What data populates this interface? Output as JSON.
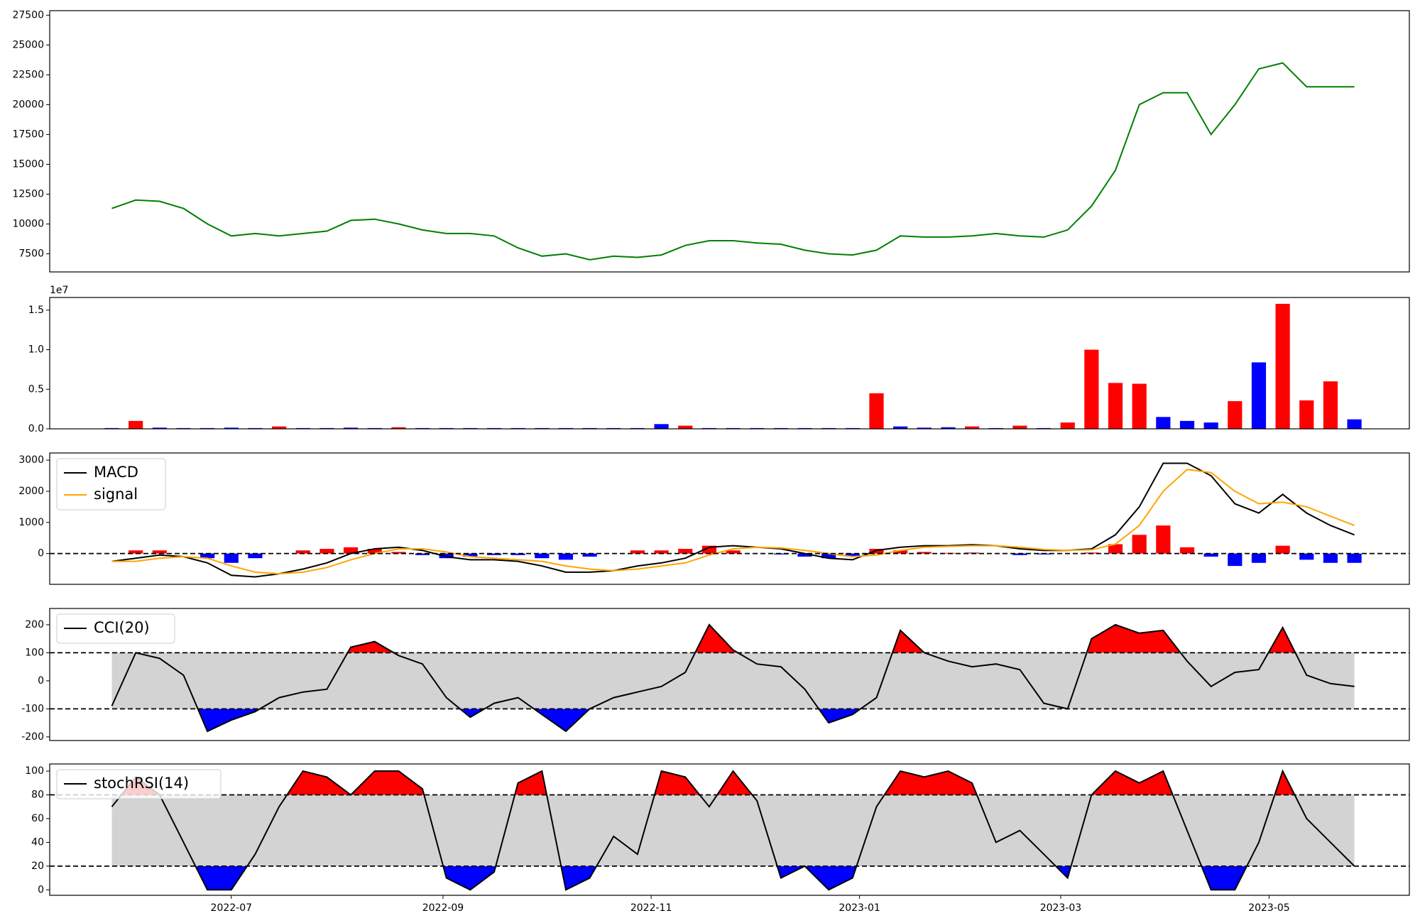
{
  "chart_data": [
    {
      "type": "line",
      "color": "green",
      "xlim": [
        -2.6,
        54.3
      ],
      "ylim": [
        5980,
        27880
      ],
      "yticks": [
        7500,
        10000,
        12500,
        15000,
        17500,
        20000,
        22500,
        25000,
        27500
      ],
      "values": [
        11300,
        12000,
        11900,
        11300,
        10000,
        9000,
        9200,
        9000,
        9200,
        9400,
        10300,
        10400,
        10000,
        9500,
        9200,
        9200,
        9000,
        8000,
        7300,
        7500,
        7000,
        7300,
        7200,
        7400,
        8200,
        8600,
        8600,
        8400,
        8300,
        7800,
        7500,
        7400,
        7800,
        9000,
        8900,
        8900,
        9000,
        9200,
        9000,
        8900,
        9500,
        11500,
        14500,
        20000,
        21000,
        21000,
        17500,
        20000,
        23000,
        23500,
        21500,
        21500,
        21500
      ]
    },
    {
      "type": "bar",
      "offset_label": "1e7",
      "xlim": [
        -2.6,
        54.3
      ],
      "ylim": [
        0,
        16600000
      ],
      "yticks": [
        {
          "value": 0,
          "label": "0.0"
        },
        {
          "value": 5000000,
          "label": "0.5"
        },
        {
          "value": 10000000,
          "label": "1.0"
        },
        {
          "value": 15000000,
          "label": "1.5"
        }
      ],
      "values": [
        100000,
        1000000,
        150000,
        100000,
        100000,
        150000,
        100000,
        300000,
        100000,
        100000,
        150000,
        100000,
        200000,
        100000,
        100000,
        100000,
        100000,
        100000,
        100000,
        100000,
        100000,
        100000,
        100000,
        600000,
        400000,
        100000,
        100000,
        100000,
        100000,
        100000,
        100000,
        100000,
        4500000,
        300000,
        150000,
        200000,
        300000,
        100000,
        400000,
        100000,
        800000,
        10000000,
        5800000,
        5700000,
        1500000,
        1000000,
        800000,
        3500000,
        8400000,
        15800000,
        3600000,
        6000000,
        1200000
      ],
      "colors": [
        "blue",
        "red",
        "blue",
        "blue",
        "blue",
        "blue",
        "blue",
        "red",
        "blue",
        "blue",
        "blue",
        "blue",
        "red",
        "blue",
        "blue",
        "blue",
        "blue",
        "blue",
        "blue",
        "blue",
        "blue",
        "blue",
        "blue",
        "blue",
        "red",
        "blue",
        "blue",
        "blue",
        "blue",
        "blue",
        "blue",
        "blue",
        "red",
        "blue",
        "blue",
        "blue",
        "red",
        "blue",
        "red",
        "blue",
        "red",
        "red",
        "red",
        "red",
        "blue",
        "blue",
        "blue",
        "red",
        "blue",
        "red",
        "red",
        "red",
        "blue"
      ]
    },
    {
      "type": "line",
      "xlim": [
        -2.6,
        54.3
      ],
      "ylim": [
        -990,
        3230
      ],
      "yticks": [
        0,
        1000,
        2000,
        3000
      ],
      "legend": "upper left",
      "hlines": [
        0
      ],
      "hline_color": "black",
      "histogram": {
        "up_color": "red",
        "down_color": "blue",
        "values": [
          0,
          100,
          100,
          0,
          -150,
          -300,
          -150,
          0,
          100,
          150,
          200,
          150,
          50,
          -50,
          -150,
          -100,
          -50,
          -50,
          -150,
          -200,
          -100,
          0,
          100,
          100,
          150,
          250,
          100,
          0,
          -30,
          -100,
          -150,
          -100,
          150,
          100,
          50,
          20,
          30,
          0,
          -50,
          -30,
          0,
          30,
          300,
          600,
          900,
          200,
          -100,
          -400,
          -300,
          250,
          -200,
          -300,
          -300
        ]
      },
      "series": [
        {
          "name": "MACD",
          "color": "black",
          "values": [
            -250,
            -150,
            -50,
            -100,
            -300,
            -700,
            -750,
            -650,
            -500,
            -300,
            0,
            150,
            200,
            100,
            -100,
            -200,
            -200,
            -250,
            -400,
            -600,
            -600,
            -550,
            -400,
            -300,
            -150,
            200,
            250,
            200,
            150,
            0,
            -150,
            -200,
            100,
            200,
            250,
            250,
            280,
            250,
            150,
            100,
            100,
            150,
            600,
            1500,
            2900,
            2900,
            2500,
            1600,
            1300,
            1900,
            1300,
            900,
            600
          ]
        },
        {
          "name": "signal",
          "color": "orange",
          "values": [
            -250,
            -250,
            -150,
            -100,
            -150,
            -400,
            -600,
            -650,
            -600,
            -450,
            -200,
            0,
            150,
            150,
            50,
            -100,
            -150,
            -200,
            -250,
            -400,
            -500,
            -550,
            -500,
            -400,
            -300,
            -50,
            150,
            200,
            180,
            100,
            0,
            -100,
            -50,
            100,
            200,
            230,
            250,
            250,
            200,
            130,
            100,
            120,
            300,
            900,
            2000,
            2700,
            2600,
            2000,
            1600,
            1650,
            1500,
            1200,
            900
          ]
        }
      ]
    },
    {
      "type": "line",
      "xlim": [
        -2.6,
        54.3
      ],
      "ylim": [
        -213,
        258
      ],
      "yticks": [
        -200,
        -100,
        0,
        100,
        200
      ],
      "legend": "upper left",
      "hlines": [
        100,
        -100
      ],
      "hline_color": "black",
      "fill_above": "red",
      "fill_below": "blue",
      "band_color": "lightgray",
      "series": [
        {
          "name": "CCI(20)",
          "color": "black",
          "values": [
            -90,
            100,
            80,
            20,
            -180,
            -140,
            -110,
            -60,
            -40,
            -30,
            120,
            140,
            90,
            60,
            -60,
            -130,
            -80,
            -60,
            -120,
            -180,
            -100,
            -60,
            -40,
            -20,
            30,
            200,
            110,
            60,
            50,
            -30,
            -150,
            -120,
            -60,
            180,
            100,
            70,
            50,
            60,
            40,
            -80,
            -100,
            150,
            200,
            170,
            180,
            70,
            -20,
            30,
            40,
            190,
            20,
            -10,
            -20
          ]
        }
      ]
    },
    {
      "type": "line",
      "xlim": [
        -2.6,
        54.3
      ],
      "ylim": [
        -4.6,
        106
      ],
      "yticks": [
        0,
        20,
        40,
        60,
        80,
        100
      ],
      "legend": "upper left",
      "hlines": [
        80,
        20
      ],
      "hline_color": "black",
      "fill_above": "red",
      "fill_below": "blue",
      "band_color": "lightgray",
      "xticks": [
        {
          "value": 5.0,
          "label": "2022-07"
        },
        {
          "value": 13.86,
          "label": "2022-09"
        },
        {
          "value": 22.57,
          "label": "2022-11"
        },
        {
          "value": 31.29,
          "label": "2023-01"
        },
        {
          "value": 39.71,
          "label": "2023-03"
        },
        {
          "value": 48.43,
          "label": "2023-05"
        }
      ],
      "series": [
        {
          "name": "stochRSI(14)",
          "color": "black",
          "values": [
            70,
            95,
            80,
            40,
            0,
            0,
            30,
            70,
            100,
            95,
            80,
            100,
            100,
            85,
            10,
            0,
            15,
            90,
            100,
            0,
            10,
            45,
            30,
            100,
            95,
            70,
            100,
            75,
            10,
            20,
            0,
            10,
            70,
            100,
            95,
            100,
            90,
            40,
            50,
            30,
            10,
            80,
            100,
            90,
            100,
            50,
            0,
            0,
            40,
            100,
            60,
            40,
            20
          ]
        }
      ]
    }
  ]
}
